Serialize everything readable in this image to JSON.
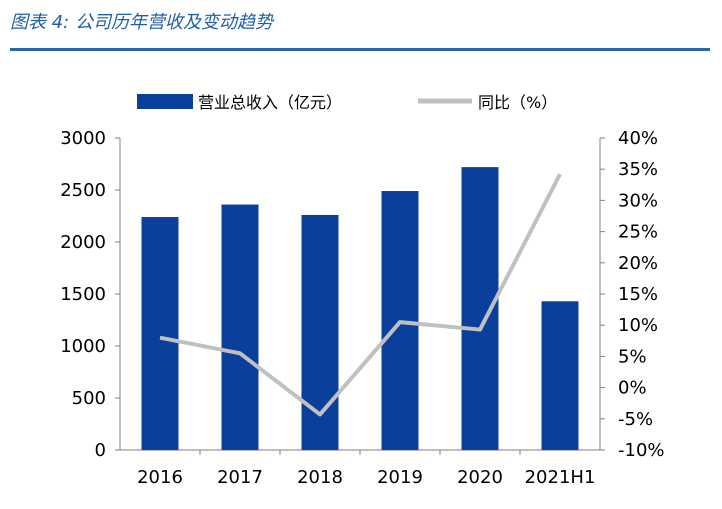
{
  "figure": {
    "title": "图表 4:  公司历年营收及变动趋势",
    "accent_color": "#2a64ad"
  },
  "chart_data": {
    "type": "bar",
    "categories": [
      "2016",
      "2017",
      "2018",
      "2019",
      "2020",
      "2021H1"
    ],
    "series": [
      {
        "name": "营业总收入（亿元）",
        "type": "bar",
        "axis": "left",
        "color": "#0a3f9b",
        "values": [
          2240,
          2360,
          2260,
          2490,
          2720,
          1430
        ]
      },
      {
        "name": "同比（%）",
        "type": "line",
        "axis": "right",
        "color": "#c0c0c0",
        "values": [
          8.0,
          5.5,
          -4.3,
          10.5,
          9.3,
          34.2
        ]
      }
    ],
    "y_left": {
      "min": 0,
      "max": 3000,
      "ticks": [
        "0",
        "500",
        "1000",
        "1500",
        "2000",
        "2500",
        "3000"
      ]
    },
    "y_right": {
      "min": -10,
      "max": 40,
      "ticks": [
        "-10%",
        "-5%",
        "0%",
        "5%",
        "10%",
        "15%",
        "20%",
        "25%",
        "30%",
        "35%",
        "40%"
      ]
    },
    "legend_position": "top",
    "grid": false
  }
}
